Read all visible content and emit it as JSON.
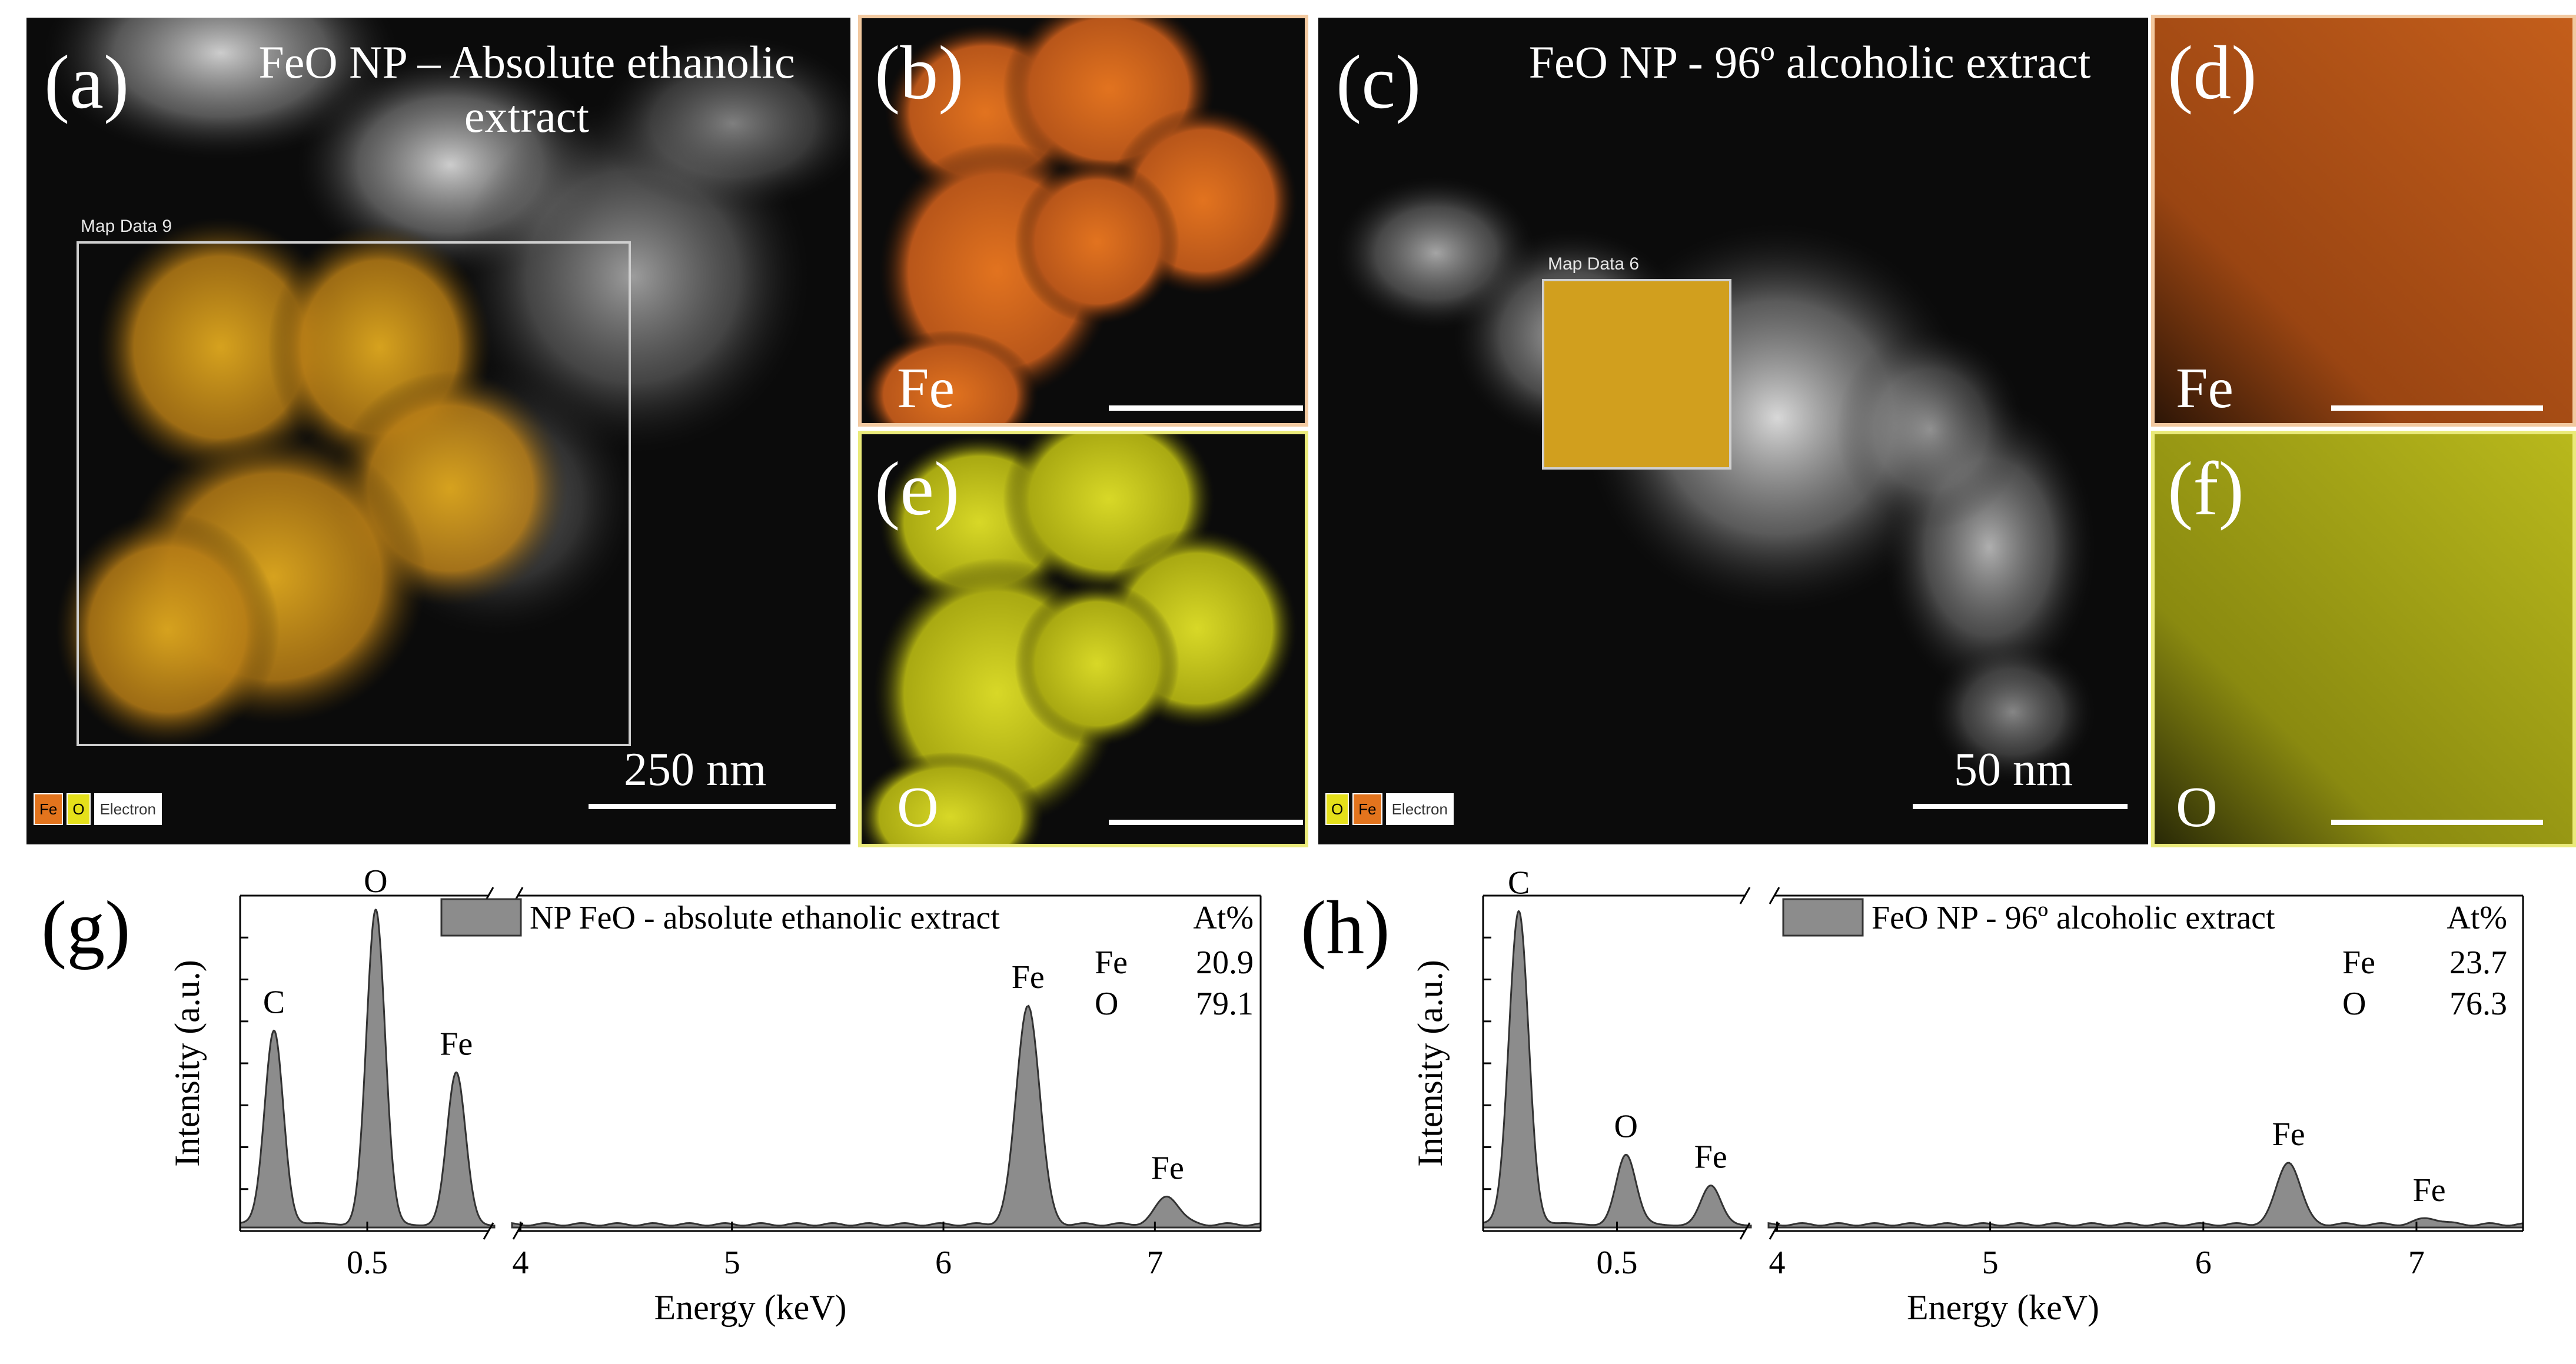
{
  "colors": {
    "fe_map": "#d8651a",
    "o_map": "#c8cc14",
    "border_fe": "#f2c9a0",
    "border_o": "#eaea7a",
    "spectrum_fill": "#8c8c8c"
  },
  "panel_a": {
    "label": "(a)",
    "title": "FeO NP – Absolute ethanolic extract",
    "map_label": "Map Data 9",
    "scale": "250 nm",
    "legend": [
      "Fe",
      "O",
      "Electron"
    ]
  },
  "panel_b": {
    "label": "(b)",
    "element": "Fe"
  },
  "panel_e": {
    "label": "(e)",
    "element": "O"
  },
  "panel_c": {
    "label": "(c)",
    "title": "FeO NP - 96º alcoholic extract",
    "map_label": "Map Data 6",
    "scale": "50 nm",
    "legend": [
      "O",
      "Fe",
      "Electron"
    ]
  },
  "panel_d": {
    "label": "(d)",
    "element": "Fe"
  },
  "panel_f": {
    "label": "(f)",
    "element": "O"
  },
  "chart_data": [
    {
      "panel": "(g)",
      "type": "area",
      "legend": "NP FeO - absolute ethanolic extract",
      "xlabel": "Energy (keV)",
      "ylabel": "Intensity (a.u.)",
      "x_ticks": [
        "0.5",
        "4",
        "5",
        "6",
        "7"
      ],
      "axis_break": true,
      "table_header": "At%",
      "table": [
        {
          "element": "Fe",
          "value": "20.9"
        },
        {
          "element": "O",
          "value": "79.1"
        }
      ],
      "peaks": [
        {
          "label": "C",
          "x": 0.28,
          "height": 0.62
        },
        {
          "label": "O",
          "x": 0.52,
          "height": 1.0
        },
        {
          "label": "Fe",
          "x": 0.71,
          "height": 0.48
        },
        {
          "label": "Fe",
          "x": 6.4,
          "height": 0.7
        },
        {
          "label": "Fe",
          "x": 7.06,
          "height": 0.09
        }
      ]
    },
    {
      "panel": "(h)",
      "type": "area",
      "legend": "FeO NP - 96º alcoholic extract",
      "xlabel": "Energy (keV)",
      "ylabel": "Intensity (a.u.)",
      "x_ticks": [
        "0.5",
        "4",
        "5",
        "6",
        "7"
      ],
      "axis_break": true,
      "table_header": "At%",
      "table": [
        {
          "element": "Fe",
          "value": "23.7"
        },
        {
          "element": "O",
          "value": "76.3"
        }
      ],
      "peaks": [
        {
          "label": "C",
          "x": 0.28,
          "height": 1.0
        },
        {
          "label": "O",
          "x": 0.52,
          "height": 0.22
        },
        {
          "label": "Fe",
          "x": 0.71,
          "height": 0.12
        },
        {
          "label": "Fe",
          "x": 6.4,
          "height": 0.2
        },
        {
          "label": "Fe",
          "x": 7.06,
          "height": 0.02
        }
      ]
    }
  ]
}
